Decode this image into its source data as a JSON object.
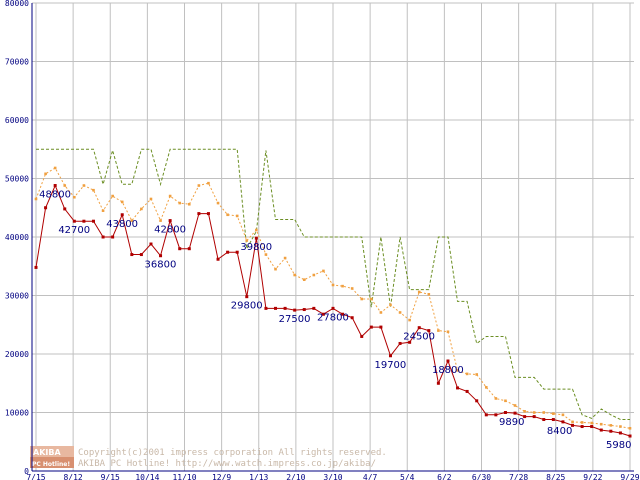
{
  "chart_data": {
    "type": "line",
    "ylim": [
      0,
      80000
    ],
    "y_ticks": [
      "0",
      "10000",
      "20000",
      "30000",
      "40000",
      "50000",
      "60000",
      "70000",
      "80000"
    ],
    "x_tick_labels": [
      "7/15",
      "8/12",
      "9/15",
      "10/14",
      "11/10",
      "12/9",
      "1/13",
      "2/10",
      "3/10",
      "4/7",
      "5/4",
      "6/2",
      "6/30",
      "7/28",
      "8/25",
      "9/22",
      "9/29"
    ],
    "grid": true,
    "colors": {
      "red": "#b00000",
      "orange": "#f0a040",
      "olive": "#6b8e23",
      "grid": "#c0c0c0",
      "axis": "#000080"
    },
    "series": [
      {
        "color": "red",
        "style": "solid",
        "values": [
          34800,
          45000,
          48800,
          44800,
          42700,
          42700,
          42700,
          40000,
          40000,
          43800,
          37000,
          37000,
          38800,
          36800,
          42800,
          38000,
          38000,
          44000,
          44000,
          36200,
          37400,
          37400,
          29800,
          39800,
          27800,
          27800,
          27800,
          27500,
          27600,
          27800,
          26800,
          27800,
          26800,
          26200,
          23000,
          24600,
          24600,
          19700,
          21800,
          22000,
          24500,
          24000,
          15000,
          18800,
          14200,
          13600,
          12000,
          9600,
          9600,
          10000,
          9890,
          9300,
          9300,
          8800,
          8800,
          8400,
          7800,
          7600,
          7600,
          7000,
          6800,
          6500,
          5980
        ]
      },
      {
        "color": "orange",
        "style": "dotted",
        "values": [
          46500,
          50800,
          51800,
          48800,
          46800,
          48800,
          48000,
          44500,
          47000,
          46000,
          42800,
          44800,
          46500,
          42800,
          47000,
          45800,
          45600,
          48800,
          49200,
          45800,
          43800,
          43600,
          39400,
          41200,
          37000,
          34500,
          36400,
          33500,
          32700,
          33500,
          34200,
          31800,
          31600,
          31200,
          29400,
          29400,
          27100,
          28400,
          27100,
          25800,
          30600,
          30200,
          24000,
          23800,
          17200,
          16600,
          16500,
          14300,
          12400,
          12000,
          11200,
          10200,
          10000,
          10000,
          9800,
          9600,
          8400,
          8300,
          8200,
          8000,
          7800,
          7600,
          7300
        ]
      },
      {
        "color": "olive",
        "style": "dashed",
        "values": [
          55000,
          55000,
          55000,
          55000,
          55000,
          55000,
          55000,
          49000,
          54800,
          49000,
          49000,
          55000,
          55000,
          49000,
          55000,
          55000,
          55000,
          55000,
          55000,
          55000,
          55000,
          55000,
          38000,
          41000,
          54800,
          43000,
          43000,
          43000,
          40000,
          40000,
          40000,
          40000,
          40000,
          40000,
          40000,
          28000,
          40000,
          28000,
          40000,
          31000,
          31000,
          31000,
          40000,
          40000,
          29000,
          29000,
          21800,
          23000,
          23000,
          23000,
          16000,
          16000,
          16000,
          14000,
          14000,
          14000,
          14000,
          9600,
          9000,
          10600,
          9600,
          8800,
          8800
        ]
      }
    ],
    "data_labels": [
      {
        "index": 2,
        "text": "48800"
      },
      {
        "index": 4,
        "text": "42700"
      },
      {
        "index": 9,
        "text": "43800"
      },
      {
        "index": 13,
        "text": "36800"
      },
      {
        "index": 14,
        "text": "42800"
      },
      {
        "index": 22,
        "text": "29800"
      },
      {
        "index": 23,
        "text": "39800"
      },
      {
        "index": 27,
        "text": "27500"
      },
      {
        "index": 31,
        "text": "27800"
      },
      {
        "index": 37,
        "text": "19700"
      },
      {
        "index": 40,
        "text": "24500"
      },
      {
        "index": 43,
        "text": "18800"
      },
      {
        "index": 50,
        "text": "9890"
      },
      {
        "index": 55,
        "text": "8400"
      },
      {
        "index": 62,
        "text": "5980"
      }
    ]
  },
  "watermark": {
    "logo_top": "AKIBA",
    "logo_bottom": "PC Hotline!",
    "line1": "Copyright(c)2001 impress corporation All rights reserved.",
    "line2": "AKIBA PC Hotline!  http://www.watch.impress.co.jp/akiba/"
  }
}
